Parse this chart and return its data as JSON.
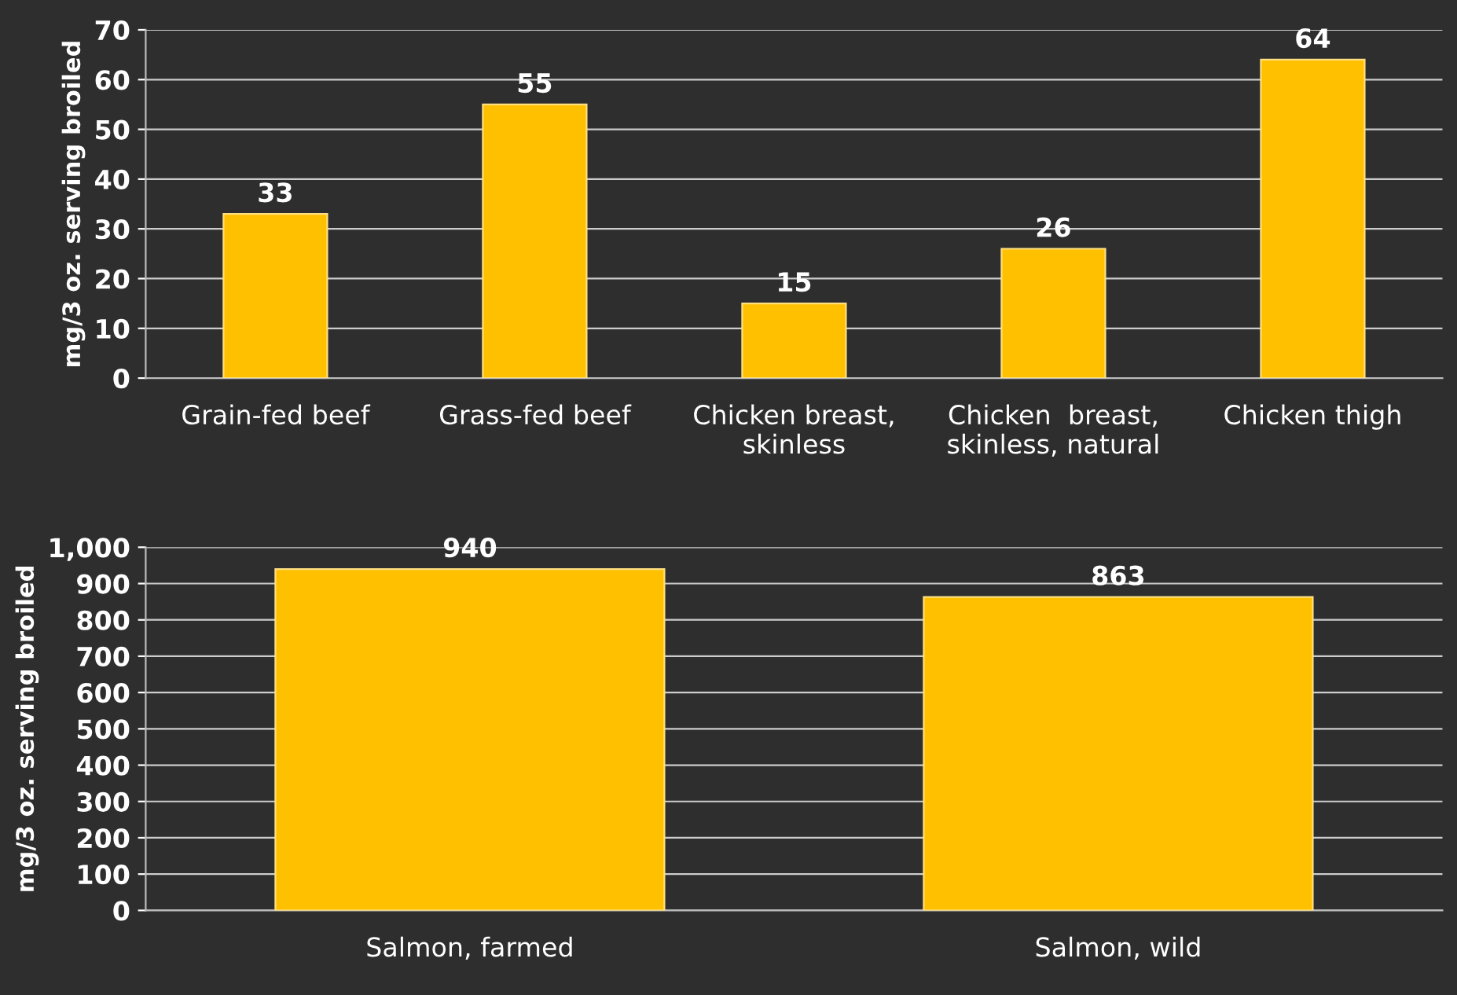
{
  "chart_data": [
    {
      "type": "bar",
      "ylabel": "mg/3 oz. serving broiled",
      "categories": [
        "Grain-fed beef",
        "Grass-fed beef",
        "Chicken breast,\nskinless",
        "Chicken  breast,\nskinless, natural",
        "Chicken thigh"
      ],
      "values": [
        33,
        55,
        15,
        26,
        64
      ],
      "color": "#ffc000",
      "ylim": [
        0,
        70
      ],
      "yticks": [
        0,
        10,
        20,
        30,
        40,
        50,
        60,
        70
      ],
      "grid": "y",
      "data_labels": true
    },
    {
      "type": "bar",
      "ylabel": "mg/3 oz. serving broiled",
      "categories": [
        "Salmon, farmed",
        "Salmon, wild"
      ],
      "values": [
        940,
        863
      ],
      "color": "#ffc000",
      "ylim": [
        0,
        1000
      ],
      "yticks": [
        0,
        100,
        200,
        300,
        400,
        500,
        600,
        700,
        800,
        900,
        {
          "value": 1000,
          "label": "1,000"
        }
      ],
      "grid": "y",
      "data_labels": true
    }
  ]
}
